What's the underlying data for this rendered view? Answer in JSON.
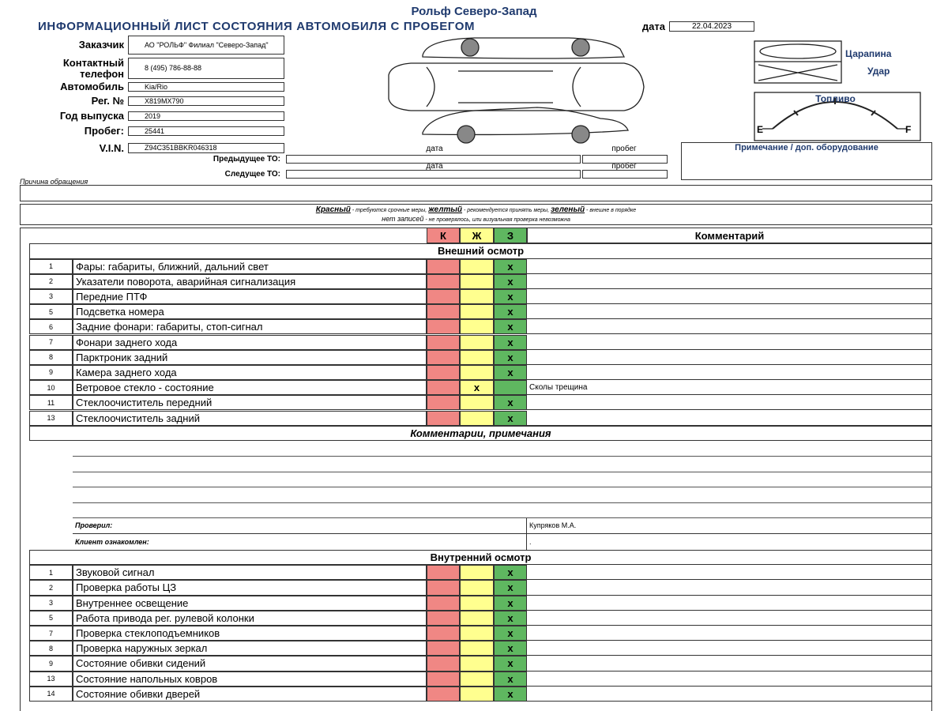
{
  "header": {
    "company": "Рольф Северо-Запад",
    "title": "ИНФОРМАЦИОННЫЙ ЛИСТ СОСТОЯНИЯ АВТОМОБИЛЯ С ПРОБЕГОМ",
    "date_label": "дата",
    "date": "22.04.2023"
  },
  "fields": [
    {
      "label": "Заказчик",
      "value": "АО \"РОЛЬФ\" Филиал \"Северо-Запад\""
    },
    {
      "label": "Контактный телефон",
      "value": "8 (495) 786-88-88"
    },
    {
      "label": "Автомобиль",
      "value": "Kia/Rio"
    },
    {
      "label": "Рег. №",
      "value": "Х819МХ790"
    },
    {
      "label": "Год выпуска",
      "value": "2019"
    },
    {
      "label": "Пробег:",
      "value": "25441"
    },
    {
      "label": "V.I.N.",
      "value": "Z94C351BBKR046318"
    }
  ],
  "legend": {
    "scratch": "Царапина",
    "dent": "Удар"
  },
  "fuel": {
    "label": "Топливо",
    "empty": "E",
    "full": "F"
  },
  "note_label": "Примечание / доп. оборудование",
  "service": {
    "col_date": "дата",
    "col_mileage": "пробег",
    "previous": "Предыдущее ТО:",
    "next": "Следущее ТО:"
  },
  "reason_label": "Причина обращения",
  "color_key": {
    "red": "Красный",
    "red_desc": " - требуются срочные меры, ",
    "yellow": "желтый",
    "yellow_desc": " - рекомендуется принять меры, ",
    "green": "зеленый",
    "green_desc": " - внешне в порядке",
    "none": "нет записей",
    "none_desc": " - не проверялось, или визуальная проверка невозможна"
  },
  "table": {
    "headers": {
      "red": "К",
      "yellow": "Ж",
      "green": "З",
      "comment": "Комментарий"
    },
    "exterior": {
      "title": "Внешний осмотр",
      "rows": [
        {
          "no": "1",
          "item": "Фары: габариты, ближний, дальний свет",
          "green": "x"
        },
        {
          "no": "2",
          "item": "Указатели поворота, аварийная сигнализация",
          "green": "x"
        },
        {
          "no": "3",
          "item": "Передние ПТФ",
          "green": "x"
        },
        {
          "no": "5",
          "item": "Подсветка номера",
          "green": "x"
        },
        {
          "no": "6",
          "item": "Задние фонари: габариты, стоп-сигнал",
          "green": "x"
        },
        {
          "no": "7",
          "item": "Фонари заднего хода",
          "green": "x"
        },
        {
          "no": "8",
          "item": "Парктроник задний",
          "green": "x"
        },
        {
          "no": "9",
          "item": "Камера заднего хода",
          "green": "x"
        },
        {
          "no": "10",
          "item": "Ветровое стекло - состояние",
          "yellow": "x",
          "comment": "Сколы трещина"
        },
        {
          "no": "11",
          "item": "Стеклоочиститель передний",
          "green": "x"
        },
        {
          "no": "13",
          "item": "Стеклоочиститель задний",
          "green": "x"
        }
      ]
    },
    "remarks": {
      "title": "Комментарии, примечания",
      "checked_label": "Проверил:",
      "checked": "Купряков М.А.",
      "client_label": "Клиент ознакомлен:",
      "client": "."
    },
    "interior": {
      "title": "Внутренний осмотр",
      "rows": [
        {
          "no": "1",
          "item": "Звуковой сигнал",
          "green": "x"
        },
        {
          "no": "2",
          "item": "Проверка работы ЦЗ",
          "green": "x"
        },
        {
          "no": "3",
          "item": "Внутреннее освещение",
          "green": "x"
        },
        {
          "no": "5",
          "item": "Работа привода рег. рулевой колонки",
          "green": "x"
        },
        {
          "no": "7",
          "item": "Проверка стеклоподъемников",
          "green": "x"
        },
        {
          "no": "8",
          "item": "Проверка наружных зеркал",
          "green": "x"
        },
        {
          "no": "9",
          "item": "Состояние обивки сидений",
          "green": "x"
        },
        {
          "no": "13",
          "item": "Состояние напольных ковров",
          "green": "x"
        },
        {
          "no": "14",
          "item": "Состояние обивки дверей",
          "green": "x"
        }
      ]
    }
  }
}
